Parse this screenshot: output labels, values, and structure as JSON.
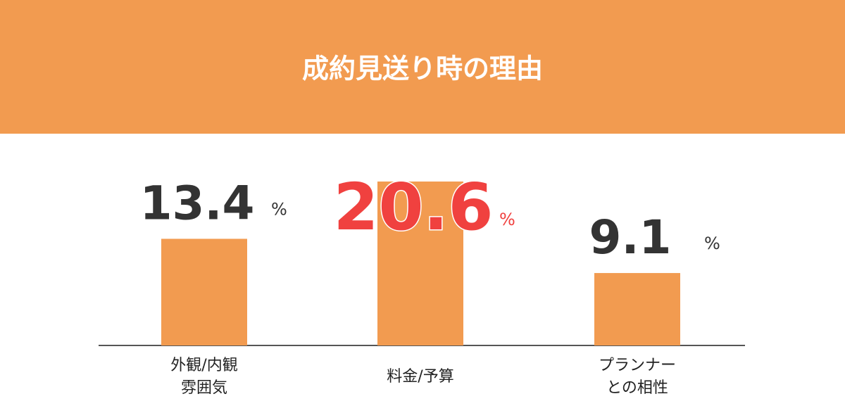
{
  "chart_data": {
    "type": "bar",
    "title": "成約見送り時の理由",
    "categories": [
      "外観/内観\n雰囲気",
      "料金/予算",
      "プランナー\nとの相性"
    ],
    "values": [
      13.4,
      20.6,
      9.1
    ],
    "unit": "%",
    "color": "#f29b50",
    "value_label_colors": [
      "#333333",
      "#f0413f",
      "#333333"
    ]
  }
}
